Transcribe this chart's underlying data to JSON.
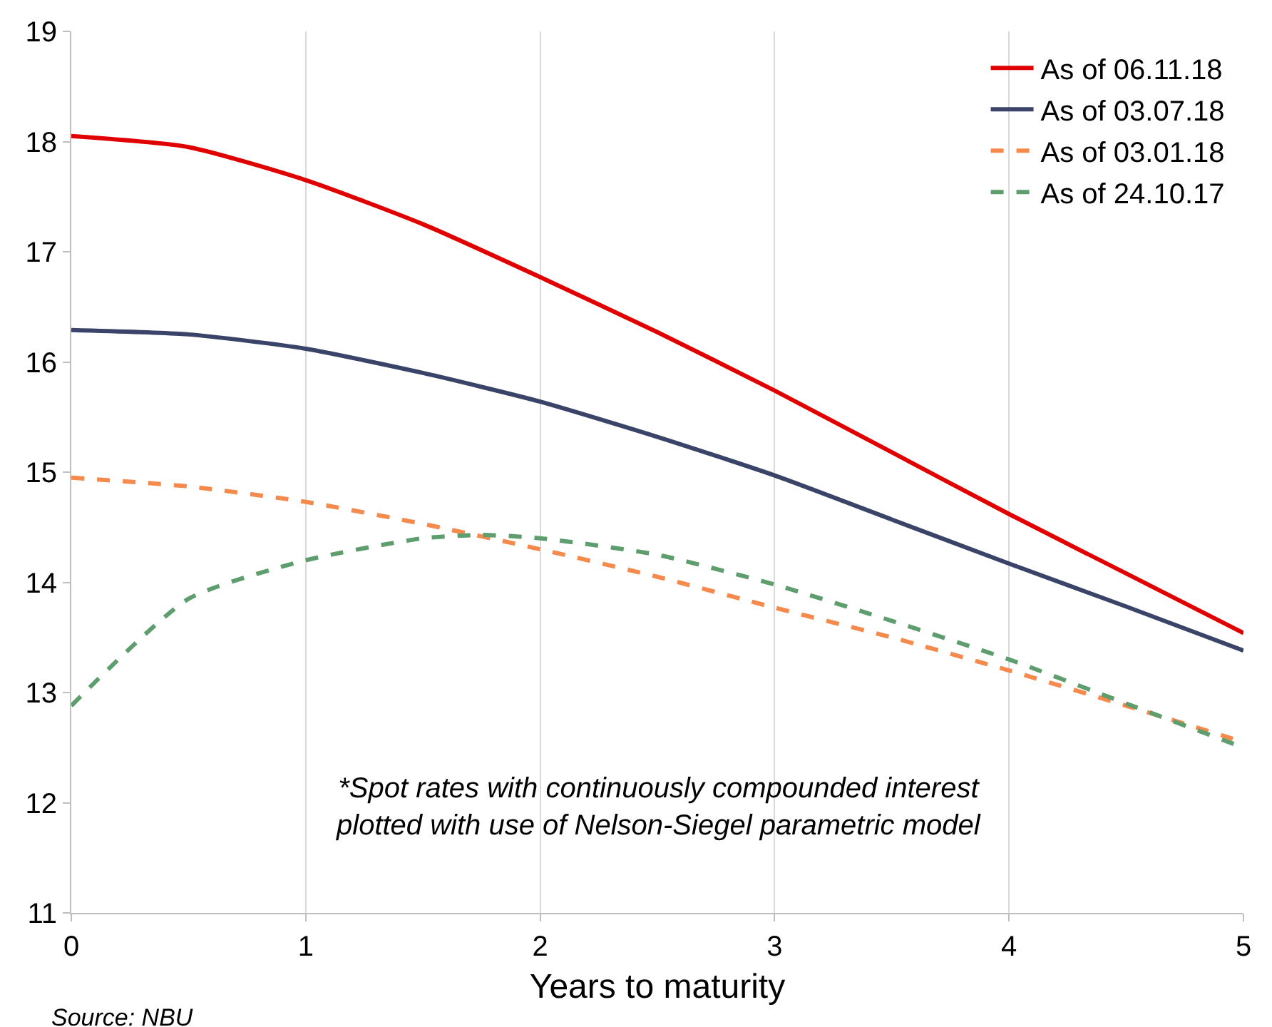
{
  "chart_data": {
    "type": "line",
    "xlabel": "Years to maturity",
    "x": [
      0,
      0.5,
      1,
      1.5,
      2,
      2.5,
      3,
      3.5,
      4,
      4.5,
      5
    ],
    "series": [
      {
        "name": "As of 06.11.18",
        "color": "#e00000",
        "line_style": "solid",
        "values": [
          18.05,
          17.95,
          17.65,
          17.25,
          16.77,
          16.27,
          15.74,
          15.18,
          14.62,
          14.08,
          13.54
        ]
      },
      {
        "name": "As of 03.07.18",
        "color": "#3a4468",
        "line_style": "solid",
        "values": [
          16.29,
          16.25,
          16.12,
          15.9,
          15.64,
          15.32,
          14.97,
          14.57,
          14.17,
          13.78,
          13.38
        ]
      },
      {
        "name": "As of 03.01.18",
        "color": "#f58a4c",
        "line_style": "dashed",
        "values": [
          14.95,
          14.87,
          14.73,
          14.53,
          14.3,
          14.05,
          13.77,
          13.5,
          13.2,
          12.88,
          12.55
        ]
      },
      {
        "name": "As of 24.10.17",
        "color": "#5e9e6e",
        "line_style": "dashed",
        "x": [
          0,
          0.5,
          1,
          1.5,
          1.75,
          2,
          2.5,
          3,
          3.5,
          4,
          4.5,
          5
        ],
        "values": [
          12.88,
          13.85,
          14.2,
          14.4,
          14.43,
          14.4,
          14.25,
          13.98,
          13.65,
          13.3,
          12.9,
          12.5
        ]
      }
    ],
    "xlim": [
      0,
      5
    ],
    "xticks": [
      0,
      1,
      2,
      3,
      4,
      5
    ],
    "ylim": [
      11,
      19
    ],
    "yticks": [
      11,
      12,
      13,
      14,
      15,
      16,
      17,
      18,
      19
    ],
    "grid": "x",
    "legend": "top right",
    "marker": "none",
    "annotations": [
      "*Spot rates with continuously compounded interest\nplotted with use of Nelson-Siegel parametric model",
      "Source: NBU"
    ]
  }
}
